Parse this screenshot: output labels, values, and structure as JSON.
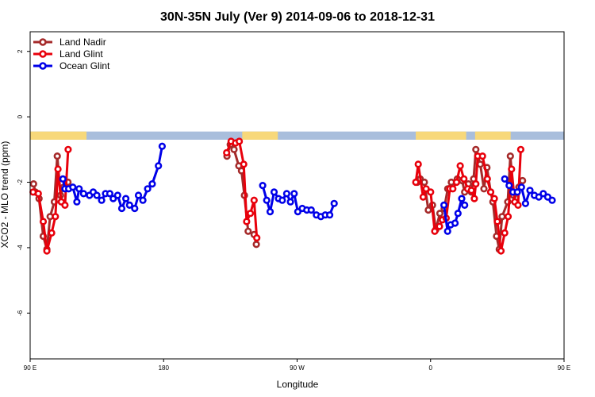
{
  "chart_data": {
    "type": "line",
    "title": "30N-35N July (Ver 9)   2014-09-06 to 2018-12-31",
    "xlabel": "Longitude",
    "ylabel": "XCO2 - MLO trend (ppm)",
    "x_range": [
      90,
      450
    ],
    "ylim": [
      -7.4,
      2.6
    ],
    "x_ticks": [
      {
        "value": 90,
        "label": "90 E"
      },
      {
        "value": 180,
        "label": "180"
      },
      {
        "value": 270,
        "label": "90 W"
      },
      {
        "value": 360,
        "label": "0"
      },
      {
        "value": 450,
        "label": "90 E"
      },
      {
        "value": 540,
        "label": "180"
      }
    ],
    "y_ticks": [
      {
        "value": 2,
        "label": "2"
      },
      {
        "value": 0,
        "label": "0"
      },
      {
        "value": -2,
        "label": "-2"
      },
      {
        "value": -4,
        "label": "-4"
      },
      {
        "value": -6,
        "label": "-6"
      }
    ],
    "grid": false,
    "legend_position": "top-left",
    "land_ocean_strip": {
      "y_range": [
        -0.7,
        -0.45
      ],
      "land_color": "#f7d87a",
      "ocean_color": "#a9bedc",
      "land_segments": [
        [
          90,
          128
        ],
        [
          233,
          257
        ],
        [
          350,
          384
        ],
        [
          390,
          414
        ],
        [
          451,
          461
        ],
        [
          463,
          472
        ]
      ]
    },
    "series": [
      {
        "name": "Land Nadir",
        "color": "#a52a2a",
        "points": [
          [
            92.3,
            -2.05
          ],
          [
            93.5,
            -2.3
          ],
          [
            96,
            -2.5
          ],
          [
            98.8,
            -3.65
          ],
          [
            101.3,
            -4.05
          ],
          [
            103.5,
            -3.05
          ],
          [
            106.3,
            -2.6
          ],
          [
            108.3,
            -1.2
          ],
          [
            110.5,
            -2.4
          ],
          [
            112.5,
            -2.15
          ],
          [
            115.5,
            -2.0
          ],
          [
            222.7,
            -1.2
          ],
          [
            224.9,
            -0.85
          ],
          [
            227.5,
            -1.0
          ],
          [
            230.7,
            -1.5
          ],
          [
            232.5,
            -1.65
          ],
          [
            234.5,
            -2.4
          ],
          [
            237,
            -3.5
          ],
          [
            241,
            -3.6
          ],
          [
            242.5,
            -3.9
          ],
          [
            351,
            -2.0
          ],
          [
            353,
            -1.9
          ],
          [
            355.8,
            -2.0
          ],
          [
            358.5,
            -2.85
          ],
          [
            361.3,
            -2.7
          ],
          [
            363.5,
            -3.45
          ],
          [
            366.3,
            -2.95
          ],
          [
            369.2,
            -2.8
          ],
          [
            371.6,
            -2.2
          ],
          [
            374,
            -2.0
          ],
          [
            378,
            -1.9
          ],
          [
            381.3,
            -1.95
          ],
          [
            383,
            -2.3
          ],
          [
            385.5,
            -2.05
          ],
          [
            387.5,
            -2.3
          ],
          [
            389,
            -1.9
          ],
          [
            390.5,
            -1.0
          ],
          [
            393.5,
            -1.45
          ],
          [
            396,
            -2.2
          ],
          [
            398,
            -1.55
          ],
          [
            400.5,
            -2.3
          ],
          [
            402,
            -2.6
          ],
          [
            404.5,
            -3.65
          ],
          [
            406.3,
            -4.05
          ],
          [
            408.2,
            -3.05
          ],
          [
            412,
            -2.6
          ],
          [
            413.8,
            -1.2
          ],
          [
            416,
            -2.4
          ],
          [
            419.5,
            -2.15
          ],
          [
            422,
            -1.95
          ]
        ]
      },
      {
        "name": "Land Glint",
        "color": "#e8000b",
        "points": [
          [
            92,
            -2.3
          ],
          [
            95.5,
            -2.35
          ],
          [
            98.8,
            -3.2
          ],
          [
            101.3,
            -4.1
          ],
          [
            104.5,
            -3.55
          ],
          [
            107,
            -3.05
          ],
          [
            108.8,
            -1.6
          ],
          [
            111,
            -2.6
          ],
          [
            113.5,
            -2.7
          ],
          [
            115.6,
            -1.0
          ],
          [
            222.5,
            -1.1
          ],
          [
            225.5,
            -0.75
          ],
          [
            228.5,
            -0.8
          ],
          [
            231,
            -0.75
          ],
          [
            234,
            -1.45
          ],
          [
            236,
            -3.2
          ],
          [
            238.5,
            -2.95
          ],
          [
            241,
            -2.55
          ],
          [
            242.8,
            -3.7
          ],
          [
            350,
            -2.0
          ],
          [
            351.7,
            -1.45
          ],
          [
            355,
            -2.45
          ],
          [
            357,
            -2.2
          ],
          [
            360,
            -2.3
          ],
          [
            362.8,
            -3.5
          ],
          [
            366,
            -3.35
          ],
          [
            368,
            -3.15
          ],
          [
            370.5,
            -3.1
          ],
          [
            373,
            -2.2
          ],
          [
            375,
            -2.2
          ],
          [
            377.5,
            -2.0
          ],
          [
            380,
            -1.5
          ],
          [
            382.5,
            -1.9
          ],
          [
            385,
            -2.2
          ],
          [
            387.5,
            -2.25
          ],
          [
            389.5,
            -2.5
          ],
          [
            390.5,
            -2.05
          ],
          [
            391.8,
            -1.2
          ],
          [
            395,
            -1.2
          ],
          [
            398.3,
            -1.9
          ],
          [
            400.5,
            -2.3
          ],
          [
            403,
            -2.5
          ],
          [
            405,
            -3.2
          ],
          [
            407.5,
            -4.1
          ],
          [
            410,
            -3.55
          ],
          [
            412.3,
            -3.05
          ],
          [
            414.6,
            -1.6
          ],
          [
            416.8,
            -2.6
          ],
          [
            419,
            -2.7
          ],
          [
            420.8,
            -1.0
          ]
        ]
      },
      {
        "name": "Ocean Glint",
        "color": "#0000e8",
        "points": [
          [
            112.1,
            -1.9
          ],
          [
            113.5,
            -2.2
          ],
          [
            116,
            -2.2
          ],
          [
            118.8,
            -2.15
          ],
          [
            121.5,
            -2.6
          ],
          [
            123,
            -2.2
          ],
          [
            126,
            -2.35
          ],
          [
            130,
            -2.4
          ],
          [
            132.5,
            -2.3
          ],
          [
            135,
            -2.4
          ],
          [
            138.2,
            -2.55
          ],
          [
            140.8,
            -2.35
          ],
          [
            143.7,
            -2.35
          ],
          [
            146,
            -2.5
          ],
          [
            149,
            -2.4
          ],
          [
            151.8,
            -2.8
          ],
          [
            154.5,
            -2.5
          ],
          [
            157,
            -2.7
          ],
          [
            160.5,
            -2.8
          ],
          [
            163,
            -2.4
          ],
          [
            166,
            -2.55
          ],
          [
            169.2,
            -2.2
          ],
          [
            172.3,
            -2.05
          ],
          [
            176.5,
            -1.5
          ],
          [
            179,
            -0.9
          ],
          [
            246.8,
            -2.1
          ],
          [
            249.5,
            -2.55
          ],
          [
            251.8,
            -2.9
          ],
          [
            254.5,
            -2.3
          ],
          [
            257.5,
            -2.5
          ],
          [
            260,
            -2.55
          ],
          [
            263,
            -2.35
          ],
          [
            265.5,
            -2.6
          ],
          [
            268,
            -2.35
          ],
          [
            270.5,
            -2.9
          ],
          [
            273.5,
            -2.8
          ],
          [
            276.5,
            -2.85
          ],
          [
            279.5,
            -2.85
          ],
          [
            283,
            -3.0
          ],
          [
            286,
            -3.05
          ],
          [
            289,
            -3.0
          ],
          [
            292,
            -3.0
          ],
          [
            295,
            -2.65
          ],
          [
            369,
            -2.7
          ],
          [
            371.5,
            -3.5
          ],
          [
            373.5,
            -3.3
          ],
          [
            376.5,
            -3.25
          ],
          [
            378.5,
            -2.95
          ],
          [
            381,
            -2.5
          ],
          [
            383,
            -2.7
          ],
          [
            410,
            -1.9
          ],
          [
            413,
            -2.1
          ],
          [
            415.5,
            -2.3
          ],
          [
            418.5,
            -2.3
          ],
          [
            421.3,
            -2.15
          ],
          [
            424,
            -2.65
          ],
          [
            427,
            -2.25
          ],
          [
            430,
            -2.4
          ],
          [
            433,
            -2.45
          ],
          [
            436,
            -2.35
          ],
          [
            439,
            -2.45
          ],
          [
            442,
            -2.55
          ]
        ]
      }
    ]
  }
}
